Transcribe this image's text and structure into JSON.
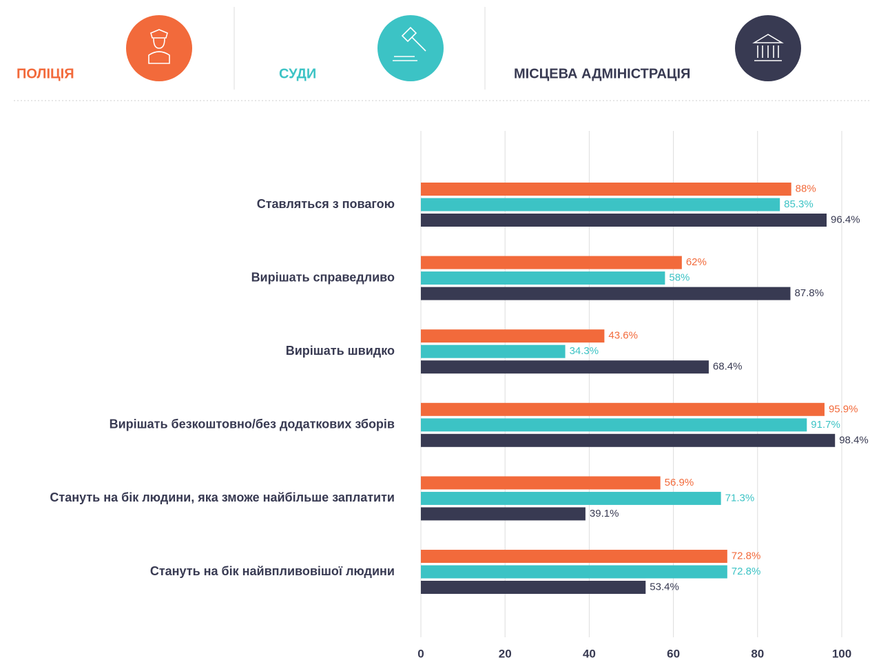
{
  "chart_data": {
    "type": "bar",
    "orientation": "horizontal",
    "categories": [
      "Ставляться з повагою",
      "Вирішать справедливо",
      "Вирішать швидко",
      "Вирішать безкоштовно/без додаткових зборів",
      "Стануть на бік людини, яка зможе найбільше заплатити",
      "Стануть на бік найвпливовішої людини"
    ],
    "series": [
      {
        "name": "ПОЛІЦІЯ",
        "color": "#f26a3b",
        "values": [
          88,
          62,
          43.6,
          95.9,
          56.9,
          72.8
        ],
        "value_labels": [
          "88%",
          "62%",
          "43.6%",
          "95.9%",
          "56.9%",
          "72.8%"
        ]
      },
      {
        "name": "СУДИ",
        "color": "#3cc3c5",
        "values": [
          85.3,
          58,
          34.3,
          91.7,
          71.3,
          72.8
        ],
        "value_labels": [
          "85.3%",
          "58%",
          "34.3%",
          "91.7%",
          "71.3%",
          "72.8%"
        ]
      },
      {
        "name": "МІСЦЕВА АДМІНІСТРАЦІЯ",
        "color": "#383a52",
        "values": [
          96.4,
          87.8,
          68.4,
          98.4,
          39.1,
          53.4
        ],
        "value_labels": [
          "96.4%",
          "87.8%",
          "68.4%",
          "98.4%",
          "39.1%",
          "53.4%"
        ]
      }
    ],
    "xlim": [
      0,
      100
    ],
    "xticks": [
      0,
      20,
      40,
      60,
      80,
      100
    ],
    "grid": true
  }
}
